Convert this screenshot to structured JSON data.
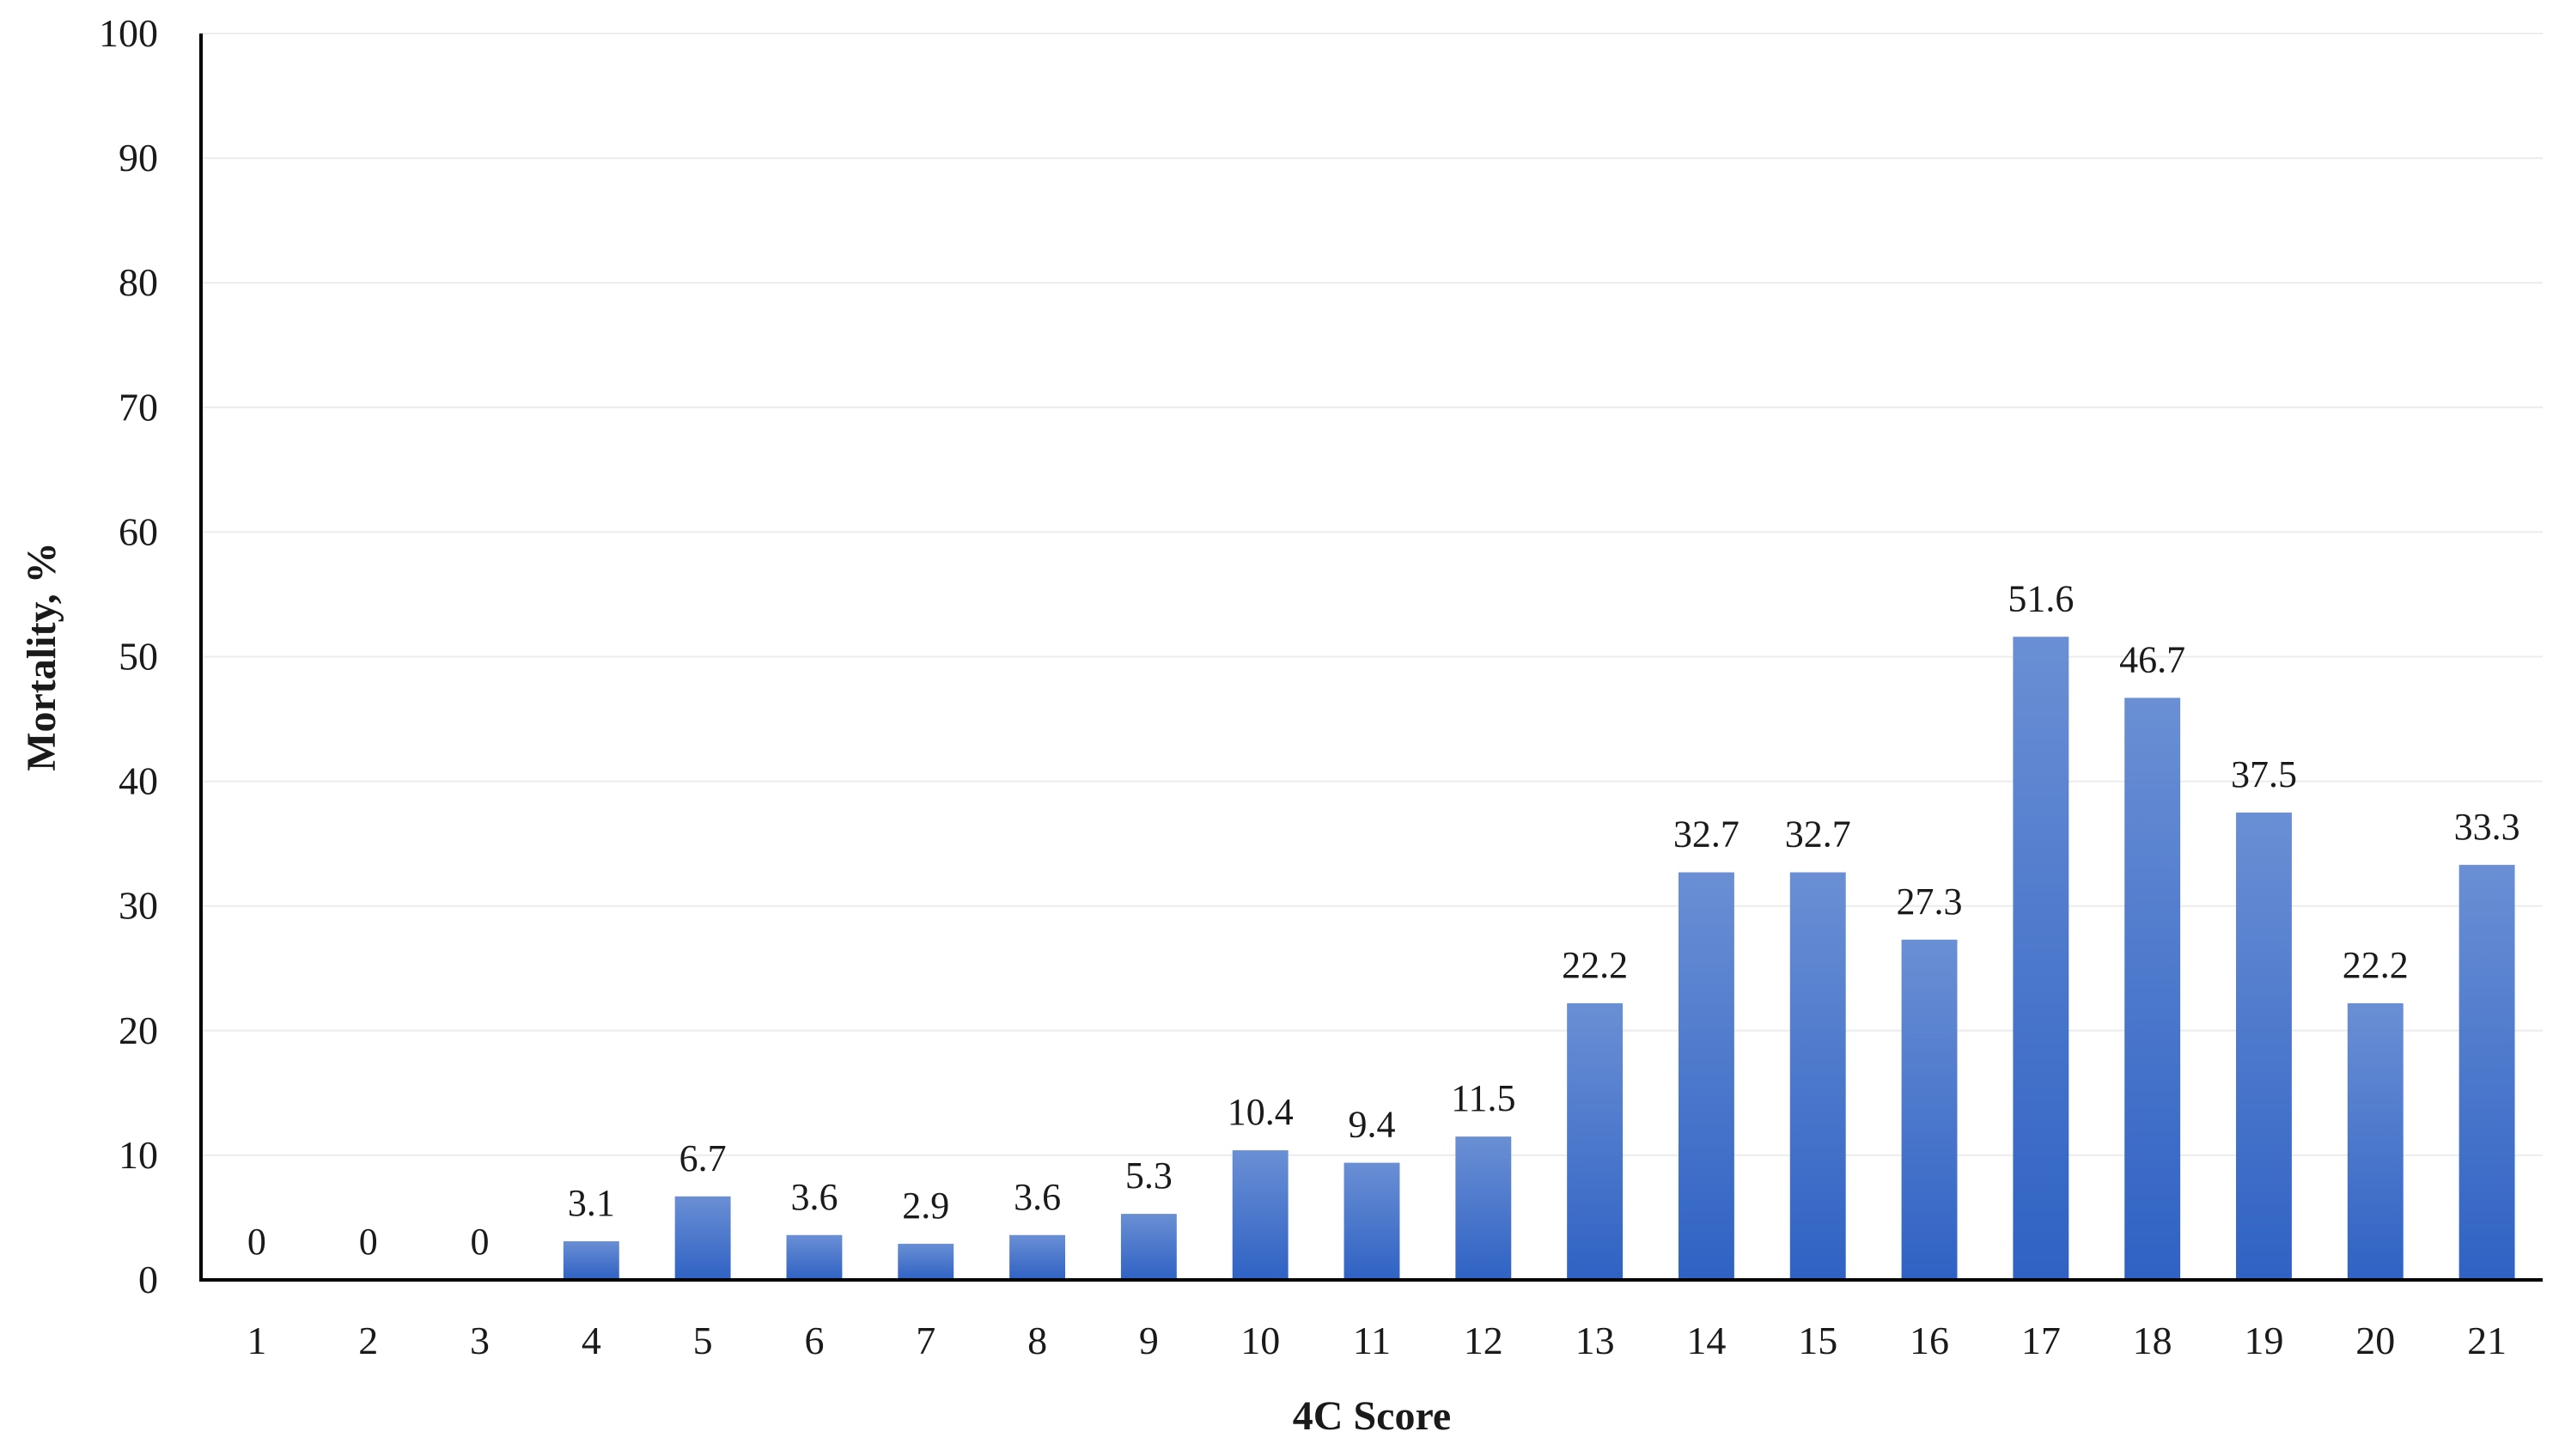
{
  "chart_data": {
    "type": "bar",
    "categories": [
      "1",
      "2",
      "3",
      "4",
      "5",
      "6",
      "7",
      "8",
      "9",
      "10",
      "11",
      "12",
      "13",
      "14",
      "15",
      "16",
      "17",
      "18",
      "19",
      "20",
      "21"
    ],
    "values": [
      0,
      0,
      0,
      3.1,
      6.7,
      3.6,
      2.9,
      3.6,
      5.3,
      10.4,
      9.4,
      11.5,
      22.2,
      32.7,
      32.7,
      27.3,
      51.6,
      46.7,
      37.5,
      22.2,
      33.3
    ],
    "data_labels": [
      "0",
      "0",
      "0",
      "3.1",
      "6.7",
      "3.6",
      "2.9",
      "3.6",
      "5.3",
      "10.4",
      "9.4",
      "11.5",
      "22.2",
      "32.7",
      "32.7",
      "27.3",
      "51.6",
      "46.7",
      "37.5",
      "22.2",
      "33.3"
    ],
    "xlabel": "4C Score",
    "ylabel": "Mortality, %",
    "ylim": [
      0,
      100
    ],
    "yticks": [
      "0",
      "10",
      "20",
      "30",
      "40",
      "50",
      "60",
      "70",
      "80",
      "90",
      "100"
    ],
    "grid": true,
    "legend": "none",
    "colors": {
      "bar_top": "#6a8fd4",
      "bar_bottom": "#2f62c4"
    }
  }
}
